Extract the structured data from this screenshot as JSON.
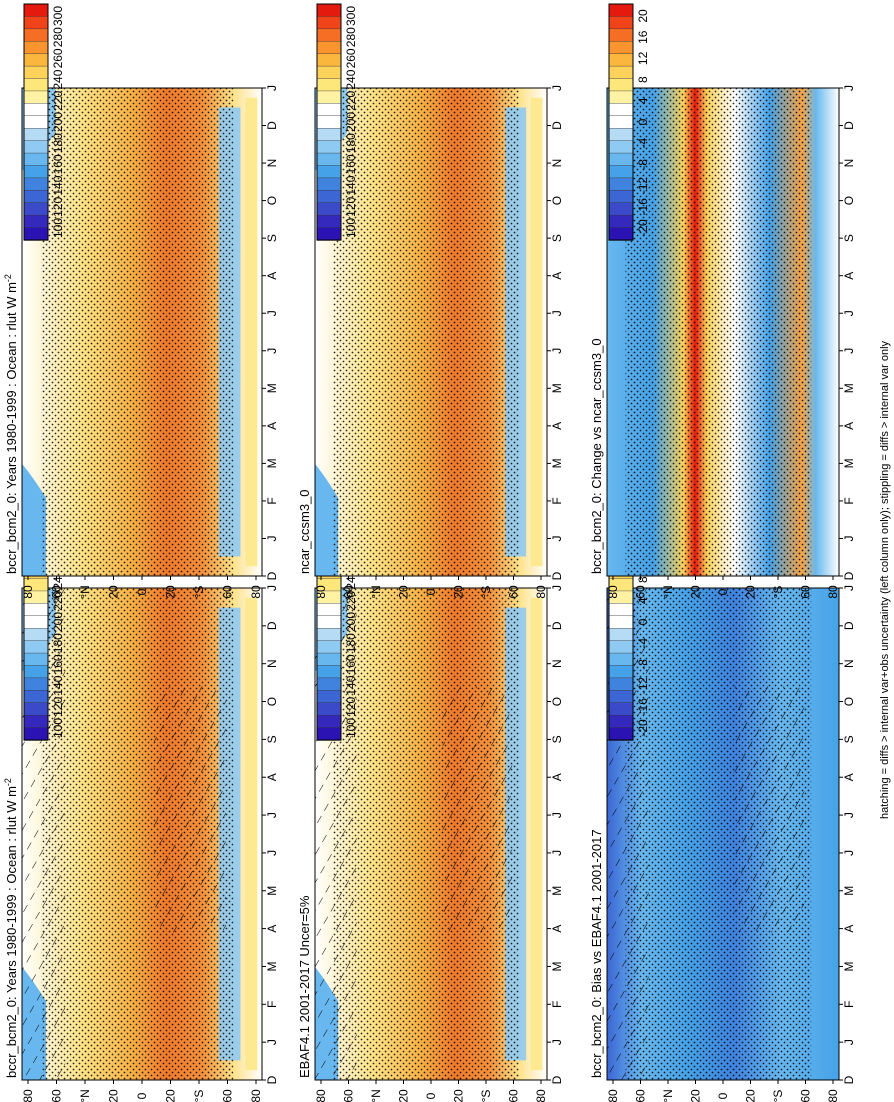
{
  "figure": {
    "footnote": "hatching = diffs > internal var+obs uncertainty (left column only); stippling = diffs > internal var only",
    "colorbar_abs": {
      "labels": [
        "300",
        "280",
        "260",
        "240",
        "220",
        "200",
        "180",
        "160",
        "140",
        "120",
        "100"
      ],
      "colors": [
        "#e51a0f",
        "#f0431a",
        "#f56e24",
        "#f9942f",
        "#fbb63e",
        "#fcd25a",
        "#fde77a",
        "#fff3a3",
        "#ffffff",
        "#ffffff",
        "#b6dbf5",
        "#8fcaf3",
        "#68b8ef",
        "#46a2e8",
        "#3f83df",
        "#3c66d4",
        "#3a4ac8",
        "#3428bd",
        "#2a13b2"
      ]
    },
    "colorbar_diff": {
      "labels": [
        "20",
        "16",
        "12",
        "8",
        "4",
        "0",
        "-4",
        "-8",
        "-12",
        "-16",
        "-20"
      ],
      "colors": [
        "#e51a0f",
        "#f0431a",
        "#f56e24",
        "#f9942f",
        "#fbb63e",
        "#fcd25a",
        "#fde77a",
        "#fff3a3",
        "#ffffff",
        "#ffffff",
        "#b6dbf5",
        "#8fcaf3",
        "#68b8ef",
        "#46a2e8",
        "#3f83df",
        "#3c66d4",
        "#3a4ac8",
        "#3428bd",
        "#2a13b2"
      ]
    },
    "lat_labels": [
      "80",
      "60",
      "°N",
      "20",
      "0",
      "20",
      "°S",
      "60",
      "80"
    ],
    "month_labels": [
      "D",
      "J",
      "F",
      "M",
      "A",
      "M",
      "J",
      "J",
      "A",
      "S",
      "O",
      "N",
      "D",
      "J"
    ]
  },
  "chart_data": [
    {
      "type": "heatmap",
      "panel": "left-top",
      "title": "bccr_bcm2_0: Years 1980-1999 : Ocean : rlut W m",
      "title_sup": "-2",
      "variable": "rlut",
      "units": "W m-2",
      "colorbar": "abs",
      "x": "month",
      "y": "latitude",
      "zlim": [
        100,
        300
      ],
      "hatching": true,
      "stippling": true
    },
    {
      "type": "heatmap",
      "panel": "right-top",
      "title": "bccr_bcm2_0: Years 1980-1999 : Ocean : rlut W m",
      "title_sup": "-2",
      "variable": "rlut",
      "units": "W m-2",
      "colorbar": "abs",
      "x": "month",
      "y": "latitude",
      "zlim": [
        100,
        300
      ],
      "hatching": false,
      "stippling": true
    },
    {
      "type": "heatmap",
      "panel": "left-middle",
      "title": "EBAF4.1 2001-2017 Uncer=5%",
      "title_sup": "",
      "colorbar": "abs",
      "x": "month",
      "y": "latitude",
      "zlim": [
        100,
        300
      ],
      "hatching": true,
      "stippling": true
    },
    {
      "type": "heatmap",
      "panel": "right-middle",
      "title": "ncar_ccsm3_0",
      "title_sup": "",
      "colorbar": "abs",
      "x": "month",
      "y": "latitude",
      "zlim": [
        100,
        300
      ],
      "hatching": false,
      "stippling": true
    },
    {
      "type": "heatmap",
      "panel": "left-bottom",
      "title": "bccr_bcm2_0: Bias vs EBAF4.1 2001-2017",
      "title_sup": "",
      "colorbar": "diff",
      "x": "month",
      "y": "latitude",
      "zlim": [
        -20,
        20
      ],
      "hatching": true,
      "stippling": true
    },
    {
      "type": "heatmap",
      "panel": "right-bottom",
      "title": "bccr_bcm2_0: Change vs ncar_ccsm3_0",
      "title_sup": "",
      "colorbar": "diff",
      "x": "month",
      "y": "latitude",
      "zlim": [
        -20,
        20
      ],
      "hatching": false,
      "stippling": true
    }
  ]
}
